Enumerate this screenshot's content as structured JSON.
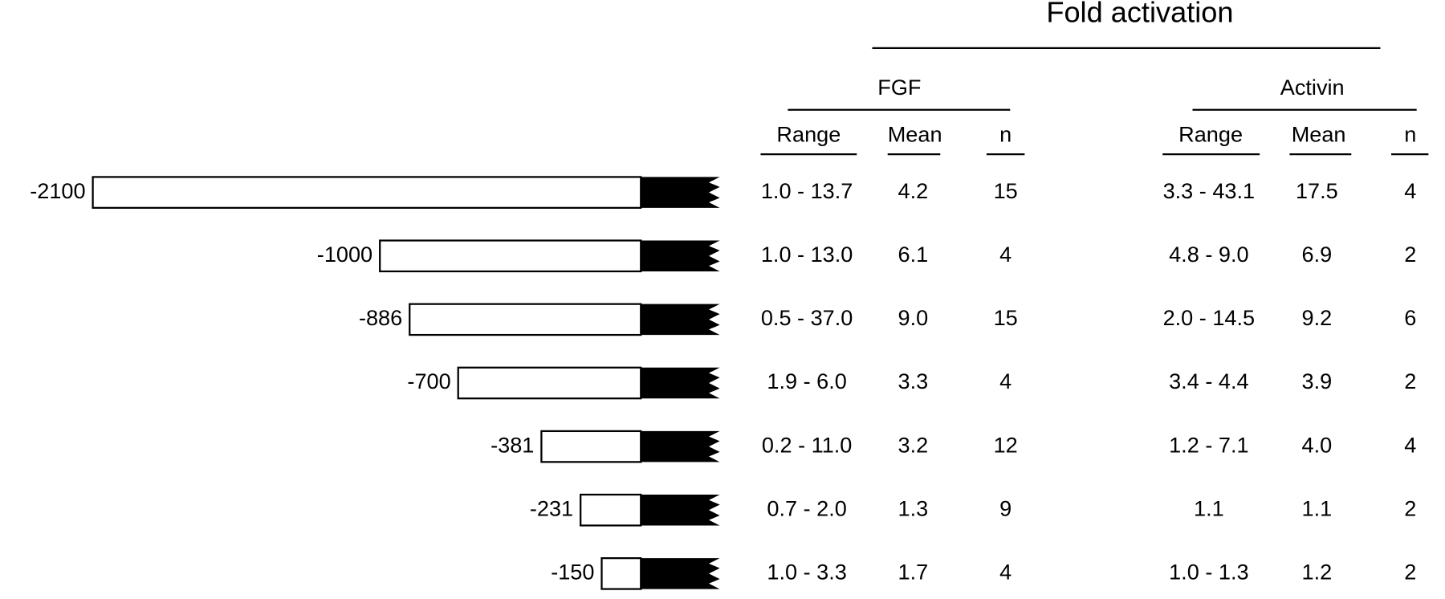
{
  "header": {
    "title": "Fold activation"
  },
  "groups": [
    {
      "name": "FGF",
      "columns": [
        "Range",
        "Mean",
        "n"
      ]
    },
    {
      "name": "Activin",
      "columns": [
        "Range",
        "Mean",
        "n"
      ]
    }
  ],
  "rows": [
    {
      "construct": -2100,
      "groups": [
        [
          "1.0 - 13.7",
          "4.2",
          "15"
        ],
        [
          "3.3 - 43.1",
          "17.5",
          "4"
        ]
      ]
    },
    {
      "construct": -1000,
      "groups": [
        [
          "1.0 - 13.0",
          "6.1",
          "4"
        ],
        [
          "4.8 - 9.0",
          "6.9",
          "2"
        ]
      ]
    },
    {
      "construct": -886,
      "groups": [
        [
          "0.5 - 37.0",
          "9.0",
          "15"
        ],
        [
          "2.0 - 14.5",
          "9.2",
          "6"
        ]
      ]
    },
    {
      "construct": -700,
      "groups": [
        [
          "1.9 - 6.0",
          "3.3",
          "4"
        ],
        [
          "3.4 - 4.4",
          "3.9",
          "2"
        ]
      ]
    },
    {
      "construct": -381,
      "groups": [
        [
          "0.2 - 11.0",
          "3.2",
          "12"
        ],
        [
          "1.2 - 7.1",
          "4.0",
          "4"
        ]
      ]
    },
    {
      "construct": -231,
      "groups": [
        [
          "0.7 - 2.0",
          "1.3",
          "9"
        ],
        [
          "1.1",
          "1.1",
          "2"
        ]
      ]
    },
    {
      "construct": -150,
      "groups": [
        [
          "1.0 - 3.3",
          "1.7",
          "4"
        ],
        [
          "1.0 - 1.3",
          "1.2",
          "2"
        ]
      ]
    }
  ]
}
